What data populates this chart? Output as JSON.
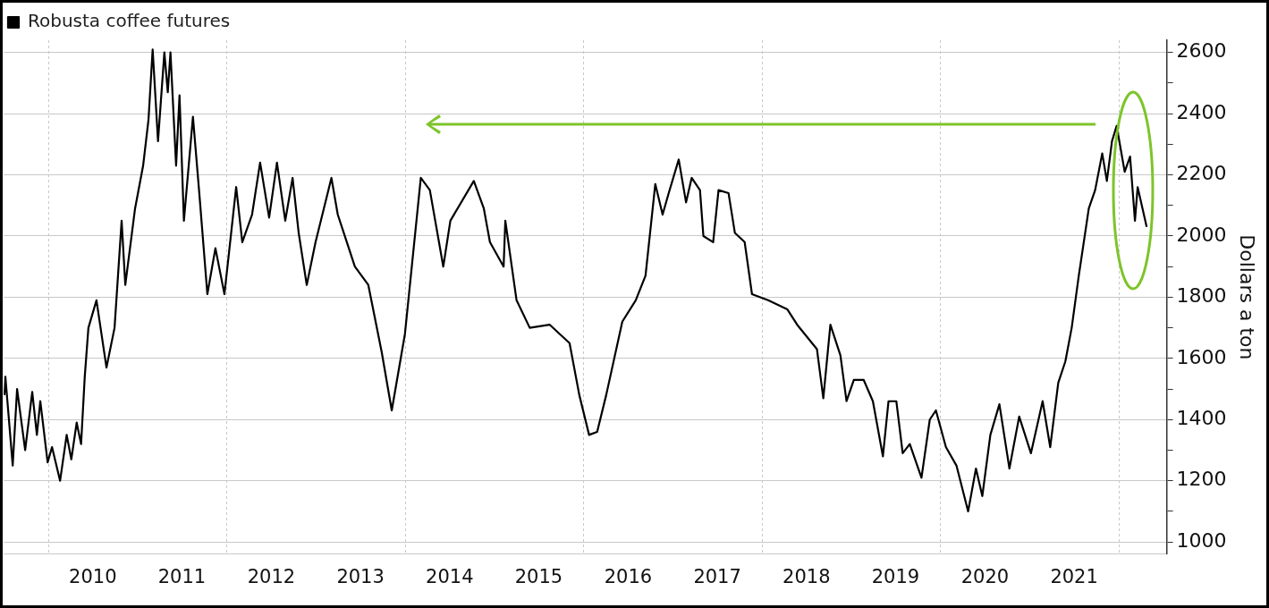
{
  "chart_data": {
    "type": "line",
    "ylabel": "Dollars a ton",
    "legend": "top left",
    "grid": true,
    "marker": "none",
    "line_style": "solid",
    "xlim": [
      "2009-07-01",
      "2022-07-15"
    ],
    "xticks": [
      {
        "value": "2010",
        "label": null
      },
      {
        "value": "2010-07-01",
        "label": "2010"
      },
      {
        "value": "2011-07-01",
        "label": "2011"
      },
      {
        "value": "2012",
        "label": null
      },
      {
        "value": "2012-07-01",
        "label": "2012"
      },
      {
        "value": "2013-07-01",
        "label": "2013"
      },
      {
        "value": "2014",
        "label": null
      },
      {
        "value": "2014-07-01",
        "label": "2014"
      },
      {
        "value": "2015-07-01",
        "label": "2015"
      },
      {
        "value": "2016",
        "label": null
      },
      {
        "value": "2016-07-01",
        "label": "2016"
      },
      {
        "value": "2017-07-01",
        "label": "2017"
      },
      {
        "value": "2018",
        "label": null
      },
      {
        "value": "2018-07-01",
        "label": "2018"
      },
      {
        "value": "2019-07-01",
        "label": "2019"
      },
      {
        "value": "2020",
        "label": null
      },
      {
        "value": "2020-07-01",
        "label": "2020"
      },
      {
        "value": "2021-07-01",
        "label": "2021"
      },
      {
        "value": "2022",
        "label": null
      }
    ],
    "ylim": [
      960,
      2640
    ],
    "yticks": [
      1000,
      {
        "value": 1100,
        "label": null
      },
      1200,
      {
        "value": 1300,
        "label": null
      },
      1400,
      {
        "value": 1500,
        "label": null
      },
      1600,
      {
        "value": 1700,
        "label": null
      },
      1800,
      {
        "value": 1900,
        "label": null
      },
      2000,
      {
        "value": 2100,
        "label": null
      },
      2200,
      {
        "value": 2300,
        "label": null
      },
      2400,
      {
        "value": 2500,
        "label": null
      },
      2600
    ],
    "series": [
      {
        "name": "Robusta coffee futures",
        "color": "#000000",
        "x": [
          "2009-07-04",
          "2009-07-08",
          "2009-08-07",
          "2009-08-25",
          "2009-09-27",
          "2009-10-26",
          "2009-11-14",
          "2009-11-28",
          "2009-12-28",
          "2010-01-15",
          "2010-02-17",
          "2010-03-16",
          "2010-04-04",
          "2010-04-26",
          "2010-05-14",
          "2010-05-29",
          "2010-06-13",
          "2010-07-16",
          "2010-08-26",
          "2010-09-28",
          "2010-10-27",
          "2010-11-11",
          "2010-12-21",
          "2011-01-23",
          "2011-02-14",
          "2011-03-03",
          "2011-03-25",
          "2011-04-20",
          "2011-05-04",
          "2011-05-15",
          "2011-06-07",
          "2011-06-21",
          "2011-07-09",
          "2011-08-15",
          "2011-09-10",
          "2011-10-13",
          "2011-11-15",
          "2011-12-22",
          "2012-02-08",
          "2012-03-04",
          "2012-04-13",
          "2012-05-16",
          "2012-06-22",
          "2012-07-24",
          "2012-08-27",
          "2012-09-26",
          "2012-10-21",
          "2012-11-23",
          "2012-12-29",
          "2013-03-04",
          "2013-03-30",
          "2013-06-08",
          "2013-08-02",
          "2013-09-26",
          "2013-11-06",
          "2013-12-30",
          "2014-03-05",
          "2014-04-11",
          "2014-06-05",
          "2014-07-04",
          "2014-10-08",
          "2014-11-18",
          "2014-12-13",
          "2015-02-07",
          "2015-02-14",
          "2015-04-01",
          "2015-05-25",
          "2015-08-15",
          "2015-11-04",
          "2015-12-14",
          "2016-01-23",
          "2016-02-25",
          "2016-04-02",
          "2016-06-07",
          "2016-08-01",
          "2016-09-10",
          "2016-10-20",
          "2016-11-19",
          "2016-12-14",
          "2017-01-24",
          "2017-02-23",
          "2017-03-18",
          "2017-04-21",
          "2017-05-05",
          "2017-06-14",
          "2017-07-06",
          "2017-08-16",
          "2017-09-11",
          "2017-10-21",
          "2017-11-20",
          "2018-01-25",
          "2018-04-14",
          "2018-05-24",
          "2018-08-13",
          "2018-09-08",
          "2018-10-07",
          "2018-11-17",
          "2018-12-12",
          "2019-01-11",
          "2019-02-20",
          "2019-03-30",
          "2019-05-10",
          "2019-06-02",
          "2019-07-04",
          "2019-07-30",
          "2019-08-28",
          "2019-10-15",
          "2019-11-18",
          "2019-12-13",
          "2020-01-23",
          "2020-03-06",
          "2020-04-23",
          "2020-05-25",
          "2020-06-20",
          "2020-07-23",
          "2020-08-29",
          "2020-10-09",
          "2020-11-18",
          "2021-01-05",
          "2021-02-22",
          "2021-03-25",
          "2021-04-27",
          "2021-05-26",
          "2021-06-21",
          "2021-07-20",
          "2021-08-30",
          "2021-09-25",
          "2021-10-24",
          "2021-11-12",
          "2021-12-03",
          "2021-12-22",
          "2022-01-24",
          "2022-02-15",
          "2022-03-07",
          "2022-03-18",
          "2022-04-24"
        ],
        "values": [
          1480,
          1540,
          1250,
          1500,
          1300,
          1490,
          1350,
          1460,
          1260,
          1310,
          1200,
          1350,
          1270,
          1390,
          1320,
          1540,
          1700,
          1790,
          1570,
          1700,
          2050,
          1840,
          2090,
          2230,
          2380,
          2610,
          2310,
          2600,
          2470,
          2600,
          2230,
          2460,
          2050,
          2390,
          2140,
          1810,
          1960,
          1810,
          2160,
          1980,
          2070,
          2240,
          2060,
          2240,
          2050,
          2190,
          2010,
          1840,
          1980,
          2190,
          2070,
          1900,
          1840,
          1620,
          1430,
          1680,
          2190,
          2150,
          1900,
          2050,
          2180,
          2090,
          1980,
          1900,
          2050,
          1790,
          1700,
          1710,
          1650,
          1480,
          1350,
          1360,
          1480,
          1720,
          1790,
          1870,
          2170,
          2070,
          2140,
          2250,
          2110,
          2190,
          2150,
          2000,
          1980,
          2150,
          2140,
          2010,
          1980,
          1810,
          1790,
          1760,
          1710,
          1630,
          1470,
          1710,
          1610,
          1460,
          1530,
          1530,
          1460,
          1280,
          1460,
          1460,
          1290,
          1320,
          1210,
          1400,
          1430,
          1310,
          1250,
          1100,
          1240,
          1150,
          1350,
          1450,
          1240,
          1410,
          1290,
          1460,
          1310,
          1520,
          1590,
          1700,
          1870,
          2090,
          2150,
          2270,
          2180,
          2310,
          2360,
          2210,
          2260,
          2050,
          2160,
          2030
        ]
      }
    ]
  }
}
